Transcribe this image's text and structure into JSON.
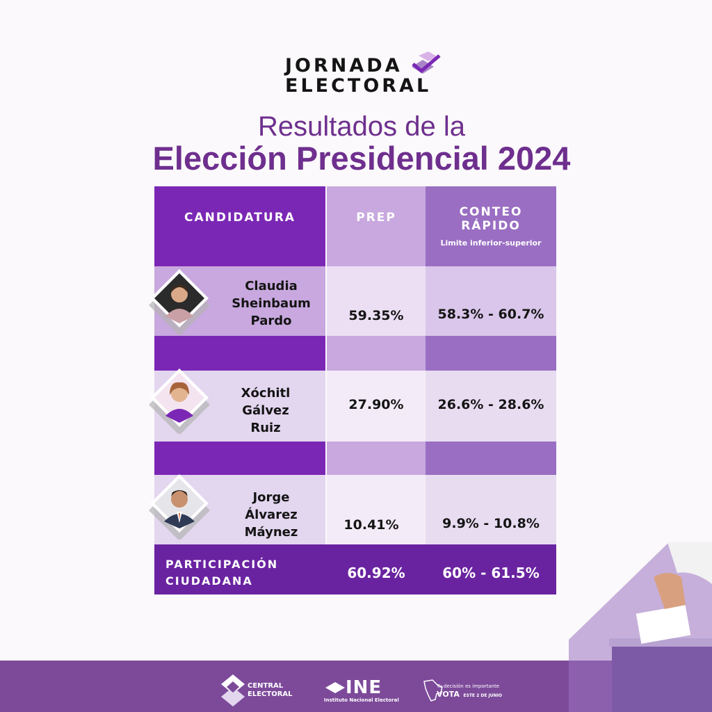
{
  "logo": {
    "line1": "JORNADA",
    "line2": "ELECTORAL"
  },
  "title": {
    "line1": "Resultados de la",
    "line2": "Elección Presidencial 2024"
  },
  "table": {
    "headers": {
      "candidatura": "CANDIDATURA",
      "prep": "PREP",
      "conteo_line1": "CONTEO",
      "conteo_line2": "RÁPIDO",
      "conteo_sub": "Limite inferior-superior"
    },
    "rows": [
      {
        "name_lines": [
          "Claudia",
          "Sheinbaum",
          "Pardo"
        ],
        "prep": "59.35%",
        "conteo": "58.3% - 60.7%"
      },
      {
        "name_lines": [
          "Xóchitl",
          "Gálvez",
          "Ruiz"
        ],
        "prep": "27.90%",
        "conteo": "26.6% - 28.6%"
      },
      {
        "name_lines": [
          "Jorge",
          "Álvarez",
          "Máynez"
        ],
        "prep": "10.41%",
        "conteo": "9.9% - 10.8%"
      }
    ],
    "participacion": {
      "label_line1": "PARTICIPACIÓN",
      "label_line2": "CIUDADANA",
      "prep": "60.92%",
      "conteo": "60% - 61.5%"
    }
  },
  "footer": {
    "central_line1": "CENTRAL",
    "central_line2": "ELECTORAL",
    "ine": "INE",
    "ine_sub": "Instituto Nacional Electoral",
    "vota_line1": "Tu decisión es importante",
    "vota_line2": "VOTA",
    "vota_date": "ESTE 2 DE JUNIO"
  },
  "colors": {
    "purple_dark": "#7b27b5",
    "purple_mid": "#9a6ec2",
    "purple_light": "#c8a8de",
    "lavender": "#e3d6ef",
    "lavender_light": "#f0e8f6",
    "footer_band": "#7d4a9a",
    "title": "#6e2f8e"
  },
  "icons": [
    "ballot-box-check-icon",
    "ballot-box-icon",
    "central-electoral-logo-icon",
    "ine-logo-icon",
    "mexico-map-icon"
  ]
}
